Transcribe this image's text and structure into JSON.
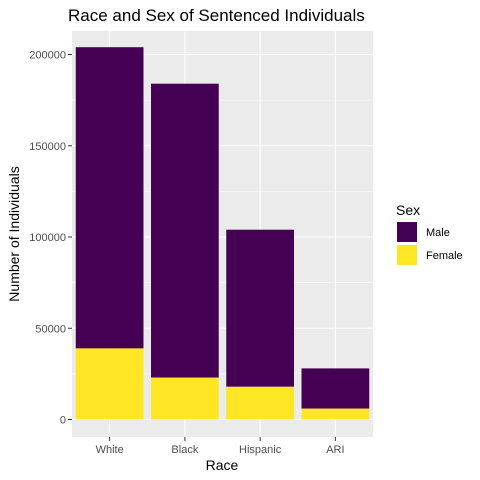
{
  "chart_data": {
    "type": "bar",
    "stacked": true,
    "title": "Race and Sex of Sentenced Individuals",
    "xlabel": "Race",
    "ylabel": "Number of Individuals",
    "categories": [
      "White",
      "Black",
      "Hispanic",
      "ARI"
    ],
    "series": [
      {
        "name": "Male",
        "color": "#440154",
        "values": [
          165000,
          161000,
          86000,
          22000
        ]
      },
      {
        "name": "Female",
        "color": "#FDE725",
        "values": [
          39000,
          23000,
          18000,
          6000
        ]
      }
    ],
    "ylim": [
      0,
      210000
    ],
    "yticks": [
      0,
      50000,
      100000,
      150000,
      200000
    ],
    "ytick_labels": [
      "0",
      "50000",
      "100000",
      "150000",
      "200000"
    ],
    "grid": true,
    "legend": {
      "title": "Sex",
      "position": "right"
    },
    "colors": {
      "panel_background": "#EBEBEB",
      "grid": "#FFFFFF"
    }
  }
}
